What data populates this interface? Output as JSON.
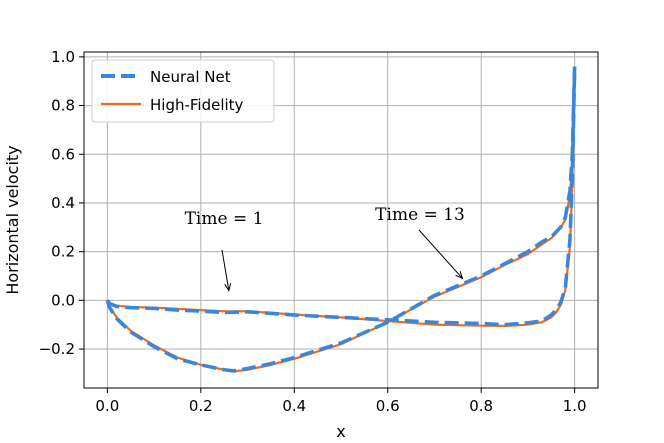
{
  "chart_data": {
    "type": "line",
    "title": "",
    "xlabel": "x",
    "ylabel": "Horizontal velocity",
    "xlim": [
      -0.05,
      1.05
    ],
    "ylim": [
      -0.36,
      1.02
    ],
    "xticks": [
      0.0,
      0.2,
      0.4,
      0.6,
      0.8,
      1.0
    ],
    "xtick_labels": [
      "0.0",
      "0.2",
      "0.4",
      "0.6",
      "0.8",
      "1.0"
    ],
    "yticks": [
      -0.2,
      0.0,
      0.2,
      0.4,
      0.6,
      0.8,
      1.0
    ],
    "ytick_labels": [
      "−0.2",
      "0.0",
      "0.2",
      "0.4",
      "0.6",
      "0.8",
      "1.0"
    ],
    "grid": true,
    "legend": {
      "placement": "upper-left",
      "entries": [
        {
          "name": "Neural Net",
          "style": "dashed",
          "color": "#3a86d9"
        },
        {
          "name": "High-Fidelity",
          "style": "solid",
          "color": "#f26a1b"
        }
      ]
    },
    "series": [
      {
        "name": "Neural Net",
        "curve": "Time = 1",
        "style": "dashed",
        "color": "#3a86d9",
        "x": [
          0.0,
          0.005,
          0.02,
          0.05,
          0.1,
          0.15,
          0.2,
          0.25,
          0.3,
          0.4,
          0.5,
          0.6,
          0.7,
          0.8,
          0.85,
          0.9,
          0.93,
          0.95,
          0.96,
          0.97,
          0.98,
          0.99,
          0.995,
          1.0
        ],
        "y": [
          0.0,
          -0.013,
          -0.025,
          -0.03,
          -0.033,
          -0.04,
          -0.044,
          -0.05,
          -0.047,
          -0.06,
          -0.07,
          -0.08,
          -0.09,
          -0.095,
          -0.1,
          -0.092,
          -0.085,
          -0.06,
          -0.04,
          -0.01,
          0.05,
          0.25,
          0.5,
          0.96
        ]
      },
      {
        "name": "High-Fidelity",
        "curve": "Time = 1",
        "style": "solid",
        "color": "#f26a1b",
        "x": [
          0.0,
          0.005,
          0.02,
          0.05,
          0.1,
          0.15,
          0.2,
          0.25,
          0.3,
          0.4,
          0.5,
          0.6,
          0.7,
          0.8,
          0.85,
          0.9,
          0.93,
          0.95,
          0.96,
          0.97,
          0.98,
          0.99,
          0.995,
          1.0
        ],
        "y": [
          0.0,
          -0.012,
          -0.022,
          -0.027,
          -0.03,
          -0.035,
          -0.04,
          -0.045,
          -0.045,
          -0.058,
          -0.07,
          -0.085,
          -0.1,
          -0.104,
          -0.105,
          -0.1,
          -0.09,
          -0.07,
          -0.05,
          -0.02,
          0.04,
          0.22,
          0.48,
          0.95
        ]
      },
      {
        "name": "Neural Net",
        "curve": "Time = 13",
        "style": "dashed",
        "color": "#3a86d9",
        "x": [
          0.0,
          0.005,
          0.02,
          0.05,
          0.1,
          0.15,
          0.2,
          0.25,
          0.27,
          0.3,
          0.35,
          0.4,
          0.5,
          0.6,
          0.7,
          0.8,
          0.85,
          0.9,
          0.93,
          0.95,
          0.96,
          0.97,
          0.98,
          0.99,
          0.995,
          1.0
        ],
        "y": [
          0.0,
          -0.03,
          -0.075,
          -0.13,
          -0.19,
          -0.24,
          -0.265,
          -0.285,
          -0.29,
          -0.28,
          -0.26,
          -0.235,
          -0.175,
          -0.09,
          0.02,
          0.1,
          0.15,
          0.2,
          0.24,
          0.26,
          0.28,
          0.3,
          0.34,
          0.45,
          0.6,
          0.96
        ]
      },
      {
        "name": "High-Fidelity",
        "curve": "Time = 13",
        "style": "solid",
        "color": "#f26a1b",
        "x": [
          0.0,
          0.005,
          0.02,
          0.05,
          0.1,
          0.15,
          0.2,
          0.25,
          0.27,
          0.3,
          0.35,
          0.4,
          0.5,
          0.6,
          0.7,
          0.8,
          0.85,
          0.9,
          0.93,
          0.95,
          0.96,
          0.97,
          0.98,
          0.99,
          0.995,
          1.0
        ],
        "y": [
          0.0,
          -0.028,
          -0.07,
          -0.125,
          -0.185,
          -0.235,
          -0.265,
          -0.285,
          -0.292,
          -0.285,
          -0.265,
          -0.24,
          -0.18,
          -0.09,
          0.015,
          0.095,
          0.145,
          0.19,
          0.23,
          0.255,
          0.275,
          0.3,
          0.33,
          0.43,
          0.58,
          0.95
        ]
      }
    ],
    "annotations": [
      {
        "text": "Time = 1",
        "arrow_to": [
          0.26,
          0.04
        ]
      },
      {
        "text": "Time = 13",
        "arrow_to": [
          0.76,
          0.09
        ]
      }
    ]
  }
}
